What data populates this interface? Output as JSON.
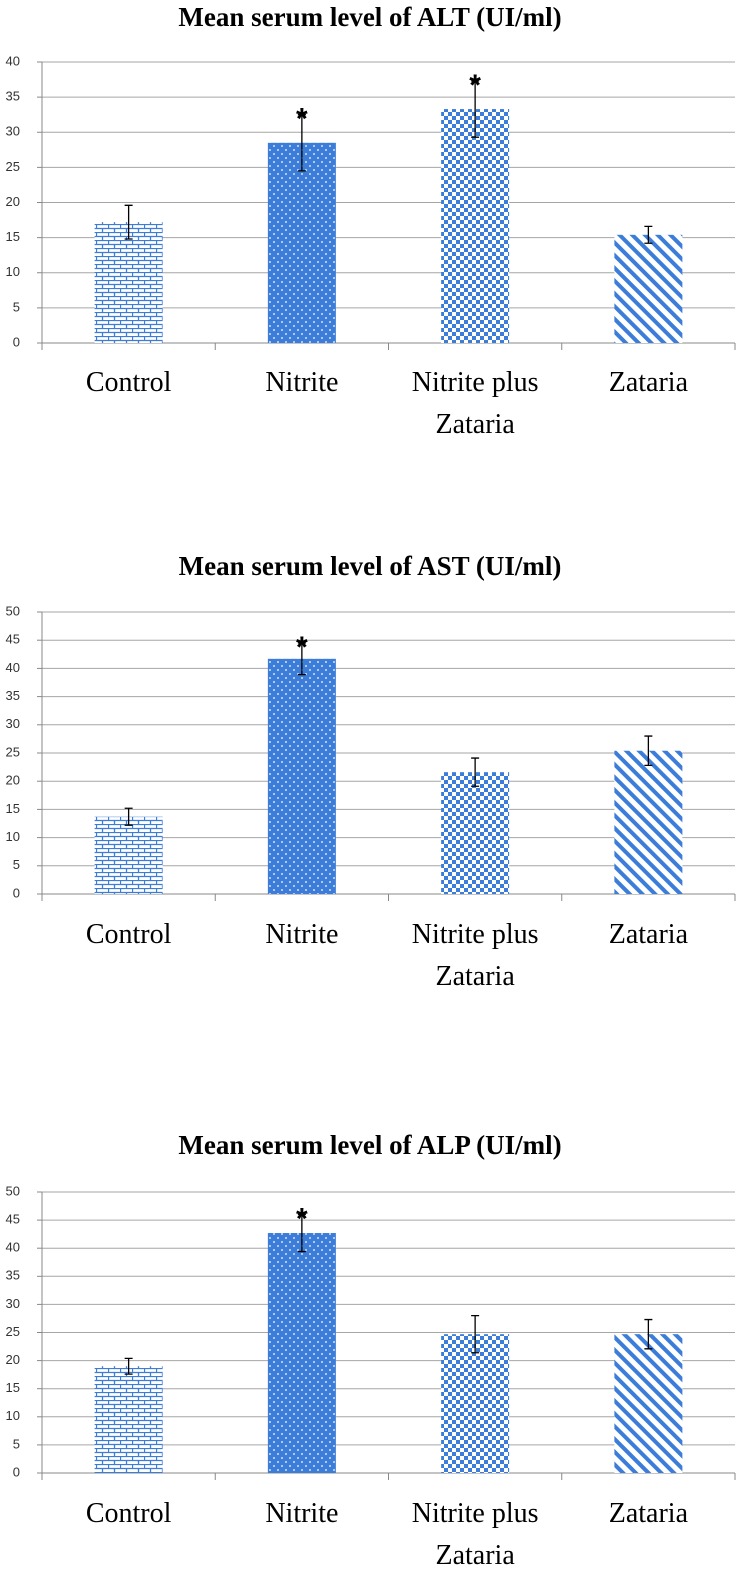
{
  "chart_data": [
    {
      "type": "bar",
      "title": "Mean serum  level of ALT (UI/ml)",
      "categories": [
        "Control",
        "Nitrite",
        "Nitrite plus Zataria",
        "Zataria"
      ],
      "values": [
        17.2,
        28.5,
        33.3,
        15.4
      ],
      "errors": [
        2.4,
        4.0,
        4.0,
        1.2
      ],
      "color": "#3b7dd8",
      "ylim": [
        0,
        40
      ],
      "yticks": [
        0,
        5,
        10,
        15,
        20,
        25,
        30,
        35,
        40
      ],
      "grid": true,
      "annotations": [
        {
          "text": "*",
          "category": "Nitrite"
        },
        {
          "text": "*",
          "category": "Nitrite plus Zataria"
        }
      ]
    },
    {
      "type": "bar",
      "title": "Mean serum  level of AST (UI/ml)",
      "categories": [
        "Control",
        "Nitrite",
        "Nitrite plus Zataria",
        "Zataria"
      ],
      "values": [
        13.7,
        41.7,
        21.6,
        25.4
      ],
      "errors": [
        1.5,
        2.8,
        2.5,
        2.6
      ],
      "color": "#3b7dd8",
      "ylim": [
        0,
        50
      ],
      "yticks": [
        0,
        5,
        10,
        15,
        20,
        25,
        30,
        35,
        40,
        45,
        50
      ],
      "grid": true,
      "annotations": [
        {
          "text": "*",
          "category": "Nitrite"
        }
      ]
    },
    {
      "type": "bar",
      "title": "Mean serum  level of ALP (UI/ml)",
      "categories": [
        "Control",
        "Nitrite",
        "Nitrite plus Zataria",
        "Zataria"
      ],
      "values": [
        19.0,
        42.7,
        24.7,
        24.7
      ],
      "errors": [
        1.4,
        3.3,
        3.3,
        2.6
      ],
      "color": "#3b7dd8",
      "ylim": [
        0,
        50
      ],
      "yticks": [
        0,
        5,
        10,
        15,
        20,
        25,
        30,
        35,
        40,
        45,
        50
      ],
      "grid": true,
      "annotations": [
        {
          "text": "*",
          "category": "Nitrite"
        }
      ]
    }
  ]
}
